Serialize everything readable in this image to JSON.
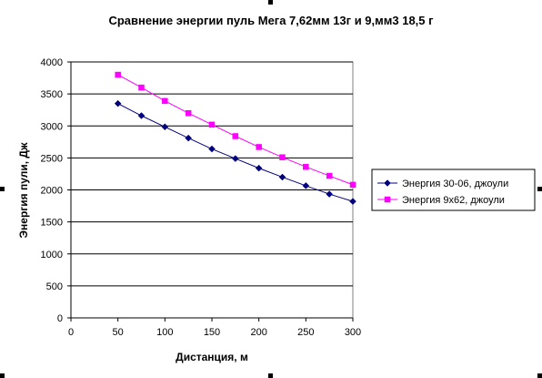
{
  "chart_data": {
    "type": "line",
    "title": "Сравнение энергии пуль Мега 7,62мм 13г и 9,мм3 18,5 г",
    "xlabel": "Дистанция, м",
    "ylabel": "Энергия пули, Дж",
    "xlim": [
      0,
      300
    ],
    "ylim": [
      0,
      4000
    ],
    "xticks": [
      0,
      50,
      100,
      150,
      200,
      250,
      300
    ],
    "yticks": [
      0,
      500,
      1000,
      1500,
      2000,
      2500,
      3000,
      3500,
      4000
    ],
    "grid": "horizontal",
    "legend": "right",
    "x": [
      50,
      75,
      100,
      125,
      150,
      175,
      200,
      225,
      250,
      275,
      300
    ],
    "series": [
      {
        "name": "Энергия 30-06, джоули",
        "color": "#000080",
        "marker": "diamond",
        "values": [
          3350,
          3160,
          2985,
          2810,
          2640,
          2490,
          2340,
          2200,
          2065,
          1935,
          1820
        ]
      },
      {
        "name": "Энергия 9х62, джоули",
        "color": "#ff00ff",
        "marker": "square",
        "values": [
          3800,
          3600,
          3390,
          3200,
          3020,
          2840,
          2670,
          2510,
          2360,
          2220,
          2080
        ]
      }
    ]
  }
}
